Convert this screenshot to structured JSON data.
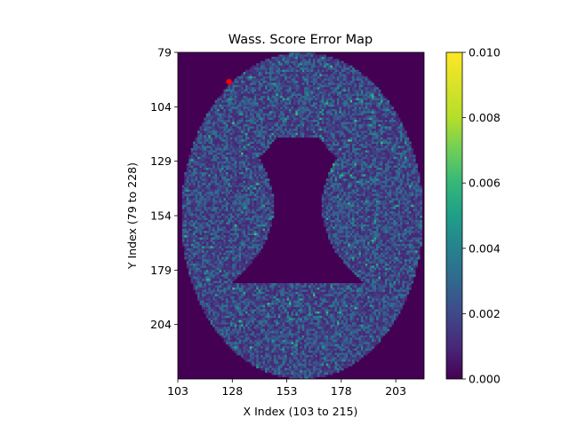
{
  "chart_data": {
    "type": "heatmap",
    "title": "Wass. Score Error Map",
    "xlabel": "X Index (103 to 215)",
    "ylabel": "Y Index (79 to 228)",
    "x_range": [
      103,
      215
    ],
    "y_range": [
      79,
      228
    ],
    "x_ticks": [
      "103",
      "128",
      "153",
      "178",
      "203"
    ],
    "y_ticks": [
      "79",
      "104",
      "129",
      "154",
      "179",
      "204"
    ],
    "y_axis_inverted": true,
    "colorbar": {
      "colormap": "viridis",
      "range": [
        0.0,
        0.01
      ],
      "ticks": [
        "0.000",
        "0.002",
        "0.004",
        "0.006",
        "0.008",
        "0.010"
      ]
    },
    "background_value": 0.0,
    "typical_tissue_value_range": [
      0.001,
      0.004
    ],
    "marker": {
      "x": 126,
      "y": 92,
      "color": "#ff0000"
    },
    "colors": {
      "viridis_low": "#440154",
      "viridis_high": "#fde725",
      "marker": "#ff0000"
    }
  }
}
